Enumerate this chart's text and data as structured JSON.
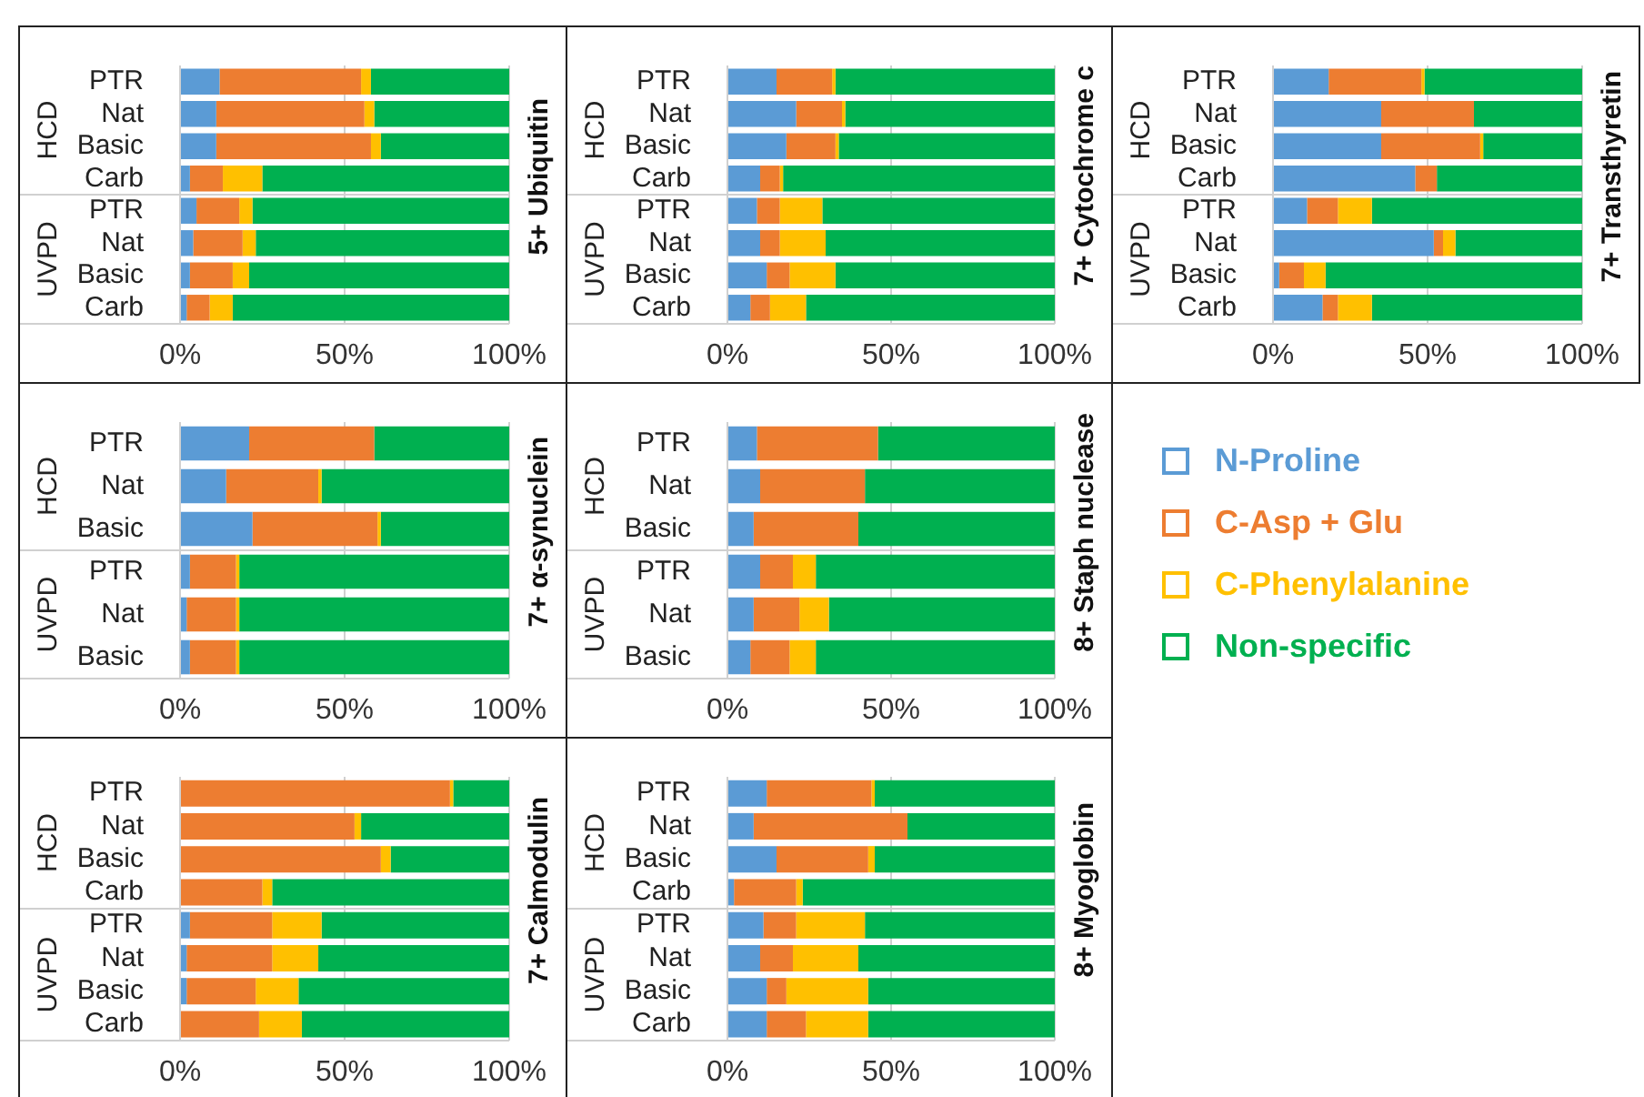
{
  "chart_data": [
    {
      "type": "bar",
      "orientation": "horizontal",
      "stacked": true,
      "title": "5+ Ubiquitin",
      "categories": [
        "PTR",
        "Nat",
        "Basic",
        "Carb",
        "PTR",
        "Nat",
        "Basic",
        "Carb"
      ],
      "annotations": [
        "HCD",
        "UVPD"
      ],
      "xlim": [
        0,
        100
      ],
      "xticks": [
        {
          "value": 0,
          "label": "0%"
        },
        {
          "value": 50,
          "label": "50%"
        },
        {
          "value": 100,
          "label": "100%"
        }
      ],
      "grid": "x",
      "series": [
        {
          "color": "#5b9bd5",
          "values": [
            12,
            11,
            11,
            3,
            5,
            4,
            3,
            2
          ]
        },
        {
          "color": "#ed7d31",
          "values": [
            43,
            45,
            47,
            10,
            13,
            15,
            13,
            7
          ]
        },
        {
          "color": "#ffc000",
          "values": [
            3,
            3,
            3,
            12,
            4,
            4,
            5,
            7
          ]
        },
        {
          "color": "#00b050",
          "values": [
            42,
            41,
            39,
            75,
            78,
            77,
            79,
            84
          ]
        }
      ]
    },
    {
      "type": "bar",
      "orientation": "horizontal",
      "stacked": true,
      "title": "7+ Cytochrome c",
      "categories": [
        "PTR",
        "Nat",
        "Basic",
        "Carb",
        "PTR",
        "Nat",
        "Basic",
        "Carb"
      ],
      "annotations": [
        "HCD",
        "UVPD"
      ],
      "xlim": [
        0,
        100
      ],
      "xticks": [
        {
          "value": 0,
          "label": "0%"
        },
        {
          "value": 50,
          "label": "50%"
        },
        {
          "value": 100,
          "label": "100%"
        }
      ],
      "grid": "x",
      "series": [
        {
          "color": "#5b9bd5",
          "values": [
            15,
            21,
            18,
            10,
            9,
            10,
            12,
            7
          ]
        },
        {
          "color": "#ed7d31",
          "values": [
            17,
            14,
            15,
            6,
            7,
            6,
            7,
            6
          ]
        },
        {
          "color": "#ffc000",
          "values": [
            1,
            1,
            1,
            1,
            13,
            14,
            14,
            11
          ]
        },
        {
          "color": "#00b050",
          "values": [
            67,
            64,
            66,
            83,
            71,
            70,
            67,
            76
          ]
        }
      ]
    },
    {
      "type": "bar",
      "orientation": "horizontal",
      "stacked": true,
      "title": "7+ Transthyretin",
      "categories": [
        "PTR",
        "Nat",
        "Basic",
        "Carb",
        "PTR",
        "Nat",
        "Basic",
        "Carb"
      ],
      "annotations": [
        "HCD",
        "UVPD"
      ],
      "xlim": [
        0,
        100
      ],
      "xticks": [
        {
          "value": 0,
          "label": "0%"
        },
        {
          "value": 50,
          "label": "50%"
        },
        {
          "value": 100,
          "label": "100%"
        }
      ],
      "grid": "x",
      "series": [
        {
          "color": "#5b9bd5",
          "values": [
            18,
            35,
            35,
            46,
            11,
            52,
            2,
            16
          ]
        },
        {
          "color": "#ed7d31",
          "values": [
            30,
            30,
            32,
            7,
            10,
            3,
            8,
            5
          ]
        },
        {
          "color": "#ffc000",
          "values": [
            1,
            0,
            1,
            0,
            11,
            4,
            7,
            11
          ]
        },
        {
          "color": "#00b050",
          "values": [
            51,
            35,
            32,
            47,
            68,
            41,
            83,
            68
          ]
        }
      ]
    },
    {
      "type": "bar",
      "orientation": "horizontal",
      "stacked": true,
      "title": "7+ α-synuclein",
      "categories": [
        "PTR",
        "Nat",
        "Basic",
        "PTR",
        "Nat",
        "Basic"
      ],
      "annotations": [
        "HCD",
        "UVPD"
      ],
      "xlim": [
        0,
        100
      ],
      "xticks": [
        {
          "value": 0,
          "label": "0%"
        },
        {
          "value": 50,
          "label": "50%"
        },
        {
          "value": 100,
          "label": "100%"
        }
      ],
      "grid": "x",
      "series": [
        {
          "color": "#5b9bd5",
          "values": [
            21,
            14,
            22,
            3,
            2,
            3
          ]
        },
        {
          "color": "#ed7d31",
          "values": [
            38,
            28,
            38,
            14,
            15,
            14
          ]
        },
        {
          "color": "#ffc000",
          "values": [
            0,
            1,
            1,
            1,
            1,
            1
          ]
        },
        {
          "color": "#00b050",
          "values": [
            41,
            57,
            39,
            82,
            82,
            82
          ]
        }
      ]
    },
    {
      "type": "bar",
      "orientation": "horizontal",
      "stacked": true,
      "title": "8+ Staph nuclease",
      "categories": [
        "PTR",
        "Nat",
        "Basic",
        "PTR",
        "Nat",
        "Basic"
      ],
      "annotations": [
        "HCD",
        "UVPD"
      ],
      "xlim": [
        0,
        100
      ],
      "xticks": [
        {
          "value": 0,
          "label": "0%"
        },
        {
          "value": 50,
          "label": "50%"
        },
        {
          "value": 100,
          "label": "100%"
        }
      ],
      "grid": "x",
      "legend": "right",
      "series": [
        {
          "name": "N-Proline",
          "color": "#5b9bd5",
          "values": [
            9,
            10,
            8,
            10,
            8,
            7
          ]
        },
        {
          "name": "C-Asp + Glu",
          "color": "#ed7d31",
          "values": [
            37,
            32,
            32,
            10,
            14,
            12
          ]
        },
        {
          "name": "C-Phenylalanine",
          "color": "#ffc000",
          "values": [
            0,
            0,
            0,
            7,
            9,
            8
          ]
        },
        {
          "name": "Non-specific",
          "color": "#00b050",
          "values": [
            54,
            58,
            60,
            73,
            69,
            73
          ]
        }
      ]
    },
    {
      "type": "bar",
      "orientation": "horizontal",
      "stacked": true,
      "title": "7+ Calmodulin",
      "categories": [
        "PTR",
        "Nat",
        "Basic",
        "Carb",
        "PTR",
        "Nat",
        "Basic",
        "Carb"
      ],
      "annotations": [
        "HCD",
        "UVPD"
      ],
      "xlim": [
        0,
        100
      ],
      "xticks": [
        {
          "value": 0,
          "label": "0%"
        },
        {
          "value": 50,
          "label": "50%"
        },
        {
          "value": 100,
          "label": "100%"
        }
      ],
      "grid": "x",
      "series": [
        {
          "color": "#5b9bd5",
          "values": [
            0,
            0,
            0,
            0,
            3,
            2,
            2,
            0
          ]
        },
        {
          "color": "#ed7d31",
          "values": [
            82,
            53,
            61,
            25,
            25,
            26,
            21,
            24
          ]
        },
        {
          "color": "#ffc000",
          "values": [
            1,
            2,
            3,
            3,
            15,
            14,
            13,
            13
          ]
        },
        {
          "color": "#00b050",
          "values": [
            17,
            45,
            36,
            72,
            57,
            58,
            64,
            63
          ]
        }
      ]
    },
    {
      "type": "bar",
      "orientation": "horizontal",
      "stacked": true,
      "title": "8+ Myoglobin",
      "categories": [
        "PTR",
        "Nat",
        "Basic",
        "Carb",
        "PTR",
        "Nat",
        "Basic",
        "Carb"
      ],
      "annotations": [
        "HCD",
        "UVPD"
      ],
      "xlim": [
        0,
        100
      ],
      "xticks": [
        {
          "value": 0,
          "label": "0%"
        },
        {
          "value": 50,
          "label": "50%"
        },
        {
          "value": 100,
          "label": "100%"
        }
      ],
      "grid": "x",
      "series": [
        {
          "color": "#5b9bd5",
          "values": [
            12,
            8,
            15,
            2,
            11,
            10,
            12,
            12
          ]
        },
        {
          "color": "#ed7d31",
          "values": [
            32,
            47,
            28,
            19,
            10,
            10,
            6,
            12
          ]
        },
        {
          "color": "#ffc000",
          "values": [
            1,
            0,
            2,
            2,
            21,
            20,
            25,
            19
          ]
        },
        {
          "color": "#00b050",
          "values": [
            55,
            45,
            55,
            77,
            58,
            60,
            57,
            57
          ]
        }
      ]
    }
  ]
}
